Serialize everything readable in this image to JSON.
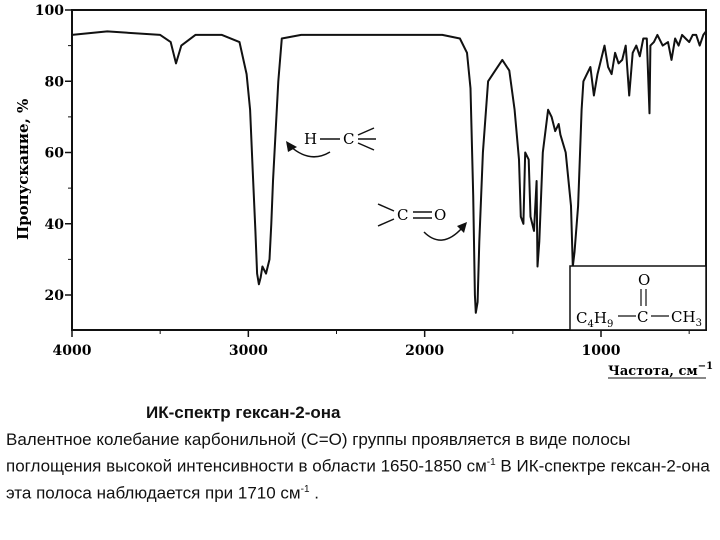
{
  "chart_data": {
    "type": "line",
    "ylabel": "Пропускание, %",
    "xlabel": "Частота, см⁻¹",
    "xlim": [
      4000,
      400
    ],
    "ylim": [
      10,
      100
    ],
    "x_ticks": [
      "4000",
      "3000",
      "2000",
      "1000"
    ],
    "x_tick_values": [
      4000,
      3000,
      2000,
      1000
    ],
    "y_ticks": [
      "100",
      "80",
      "60",
      "40",
      "20"
    ],
    "y_tick_values": [
      100,
      80,
      60,
      40,
      20
    ],
    "series": [
      {
        "x": [
          4000,
          3800,
          3500,
          3440,
          3410,
          3380,
          3300,
          3150,
          3050,
          3010,
          2990,
          2975,
          2960,
          2950,
          2940,
          2930,
          2920,
          2900,
          2880,
          2870,
          2860,
          2830,
          2810,
          2700,
          2500,
          2300,
          2100,
          1900,
          1800,
          1760,
          1740,
          1725,
          1715,
          1710,
          1700,
          1690,
          1670,
          1640,
          1600,
          1560,
          1520,
          1490,
          1465,
          1455,
          1440,
          1430,
          1410,
          1400,
          1380,
          1365,
          1360,
          1350,
          1330,
          1300,
          1280,
          1260,
          1240,
          1230,
          1200,
          1170,
          1160,
          1150,
          1130,
          1120,
          1110,
          1100,
          1080,
          1060,
          1040,
          1020,
          1000,
          980,
          960,
          940,
          920,
          900,
          880,
          860,
          840,
          820,
          800,
          780,
          760,
          740,
          725,
          720,
          700,
          680,
          650,
          620,
          600,
          580,
          560,
          540,
          520,
          500,
          480,
          460,
          440,
          420,
          400
        ],
        "values": [
          93,
          94,
          93,
          91,
          85,
          90,
          93,
          93,
          91,
          82,
          72,
          55,
          38,
          26,
          23,
          25,
          28,
          26,
          30,
          40,
          52,
          80,
          92,
          93,
          93,
          93,
          93,
          93,
          92,
          88,
          78,
          48,
          20,
          15,
          18,
          35,
          60,
          80,
          83,
          86,
          83,
          72,
          58,
          42,
          40,
          60,
          58,
          42,
          38,
          52,
          28,
          35,
          60,
          72,
          70,
          66,
          68,
          65,
          60,
          45,
          28,
          32,
          45,
          58,
          72,
          80,
          82,
          84,
          76,
          82,
          86,
          90,
          84,
          82,
          88,
          85,
          86,
          90,
          76,
          88,
          90,
          87,
          92,
          92,
          71,
          90,
          91,
          93,
          90,
          91,
          86,
          92,
          90,
          93,
          92,
          91,
          93,
          93,
          90,
          93,
          94
        ]
      }
    ],
    "annotations": [
      {
        "text": "H—C",
        "target_x": 2950
      },
      {
        "text": "C=O",
        "target_x": 1710
      },
      {
        "text": "O",
        "target_x": 1000
      },
      {
        "text": "C4H9—C—CH3",
        "target_x": 700
      }
    ]
  },
  "chart_labels": {
    "ylabel": "Пропускание, %",
    "xlabel": "Частота, см",
    "xlabel_sup": "−1",
    "ann_hc_h": "H",
    "ann_hc_c": "C",
    "ann_co_c": "C",
    "ann_co_o": "O",
    "struct_o": "O",
    "struct_left": "C",
    "struct_left_sub1": "4",
    "struct_left_h": "H",
    "struct_left_sub2": "9",
    "struct_mid": "C",
    "struct_right": "CH",
    "struct_right_sub": "3"
  },
  "caption": {
    "title": "ИК-спектр гексан-2-она",
    "body_1": "Валентное колебание карбонильной (С=О) группы проявляется в виде полосы поглощения высокой интенсивности в области 1650-1850 см",
    "body_1_sup": "-1",
    "body_2": " В ИК-спектре гексан-2-она эта полоса наблюдается при 1710 см",
    "body_2_sup": "-1",
    "body_3": " ."
  }
}
